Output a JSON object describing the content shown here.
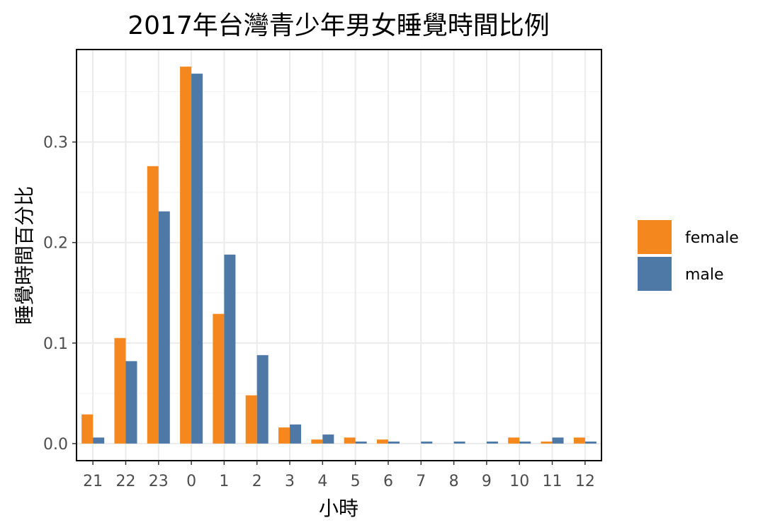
{
  "chart_data": {
    "type": "bar",
    "title": "2017年台灣青少年男女睡覺時間比例",
    "xlabel": "小時",
    "ylabel": "睡覺時間百分比",
    "categories": [
      "21",
      "22",
      "23",
      "0",
      "1",
      "2",
      "3",
      "4",
      "5",
      "6",
      "7",
      "8",
      "9",
      "10",
      "11",
      "12"
    ],
    "series": [
      {
        "name": "female",
        "color": "#F5871F",
        "values": [
          0.029,
          0.105,
          0.276,
          0.375,
          0.129,
          0.048,
          0.016,
          0.004,
          0.006,
          0.004,
          0.0,
          0.0,
          0.0,
          0.006,
          0.002,
          0.006
        ]
      },
      {
        "name": "male",
        "color": "#4E79A7",
        "values": [
          0.006,
          0.082,
          0.231,
          0.368,
          0.188,
          0.088,
          0.019,
          0.009,
          0.002,
          0.002,
          0.002,
          0.002,
          0.002,
          0.002,
          0.006,
          0.002
        ]
      }
    ],
    "yticks": [
      "0.0",
      "0.1",
      "0.2",
      "0.3"
    ],
    "ytick_values": [
      0.0,
      0.1,
      0.2,
      0.3
    ],
    "ylim": [
      -0.017,
      0.392
    ],
    "grid": true,
    "legend_position": "right"
  }
}
